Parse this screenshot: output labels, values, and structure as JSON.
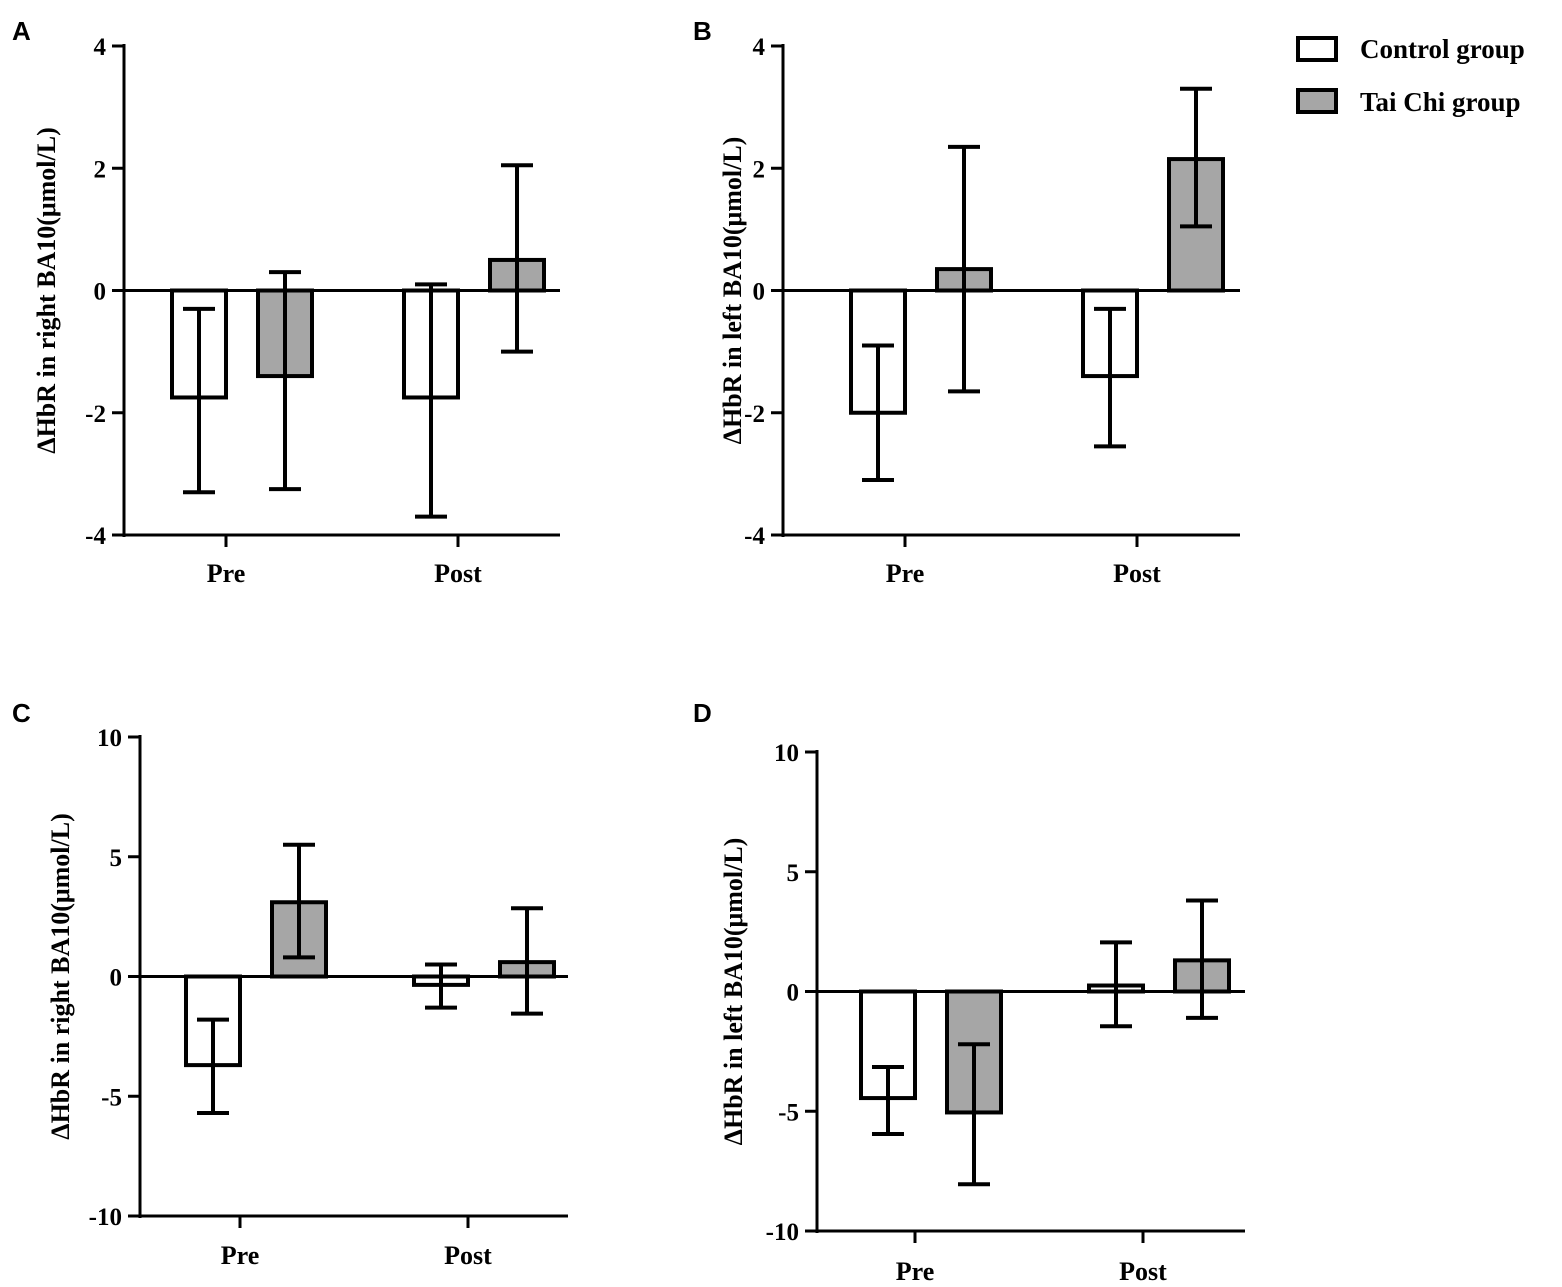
{
  "colors": {
    "control": "#ffffff",
    "taichi": "#a6a6a6",
    "stroke": "#000000"
  },
  "legend": {
    "items": [
      {
        "label": "Control group",
        "color": "#ffffff"
      },
      {
        "label": "Tai Chi group",
        "color": "#a6a6a6"
      }
    ]
  },
  "chart_data": [
    {
      "panel": "A",
      "type": "bar",
      "ylabel": "ΔHbR in right BA10(μmol/L)",
      "ylim": [
        -4,
        4
      ],
      "yticks": [
        4,
        2,
        0,
        -2,
        -4
      ],
      "categories": [
        "Pre",
        "Post"
      ],
      "series": [
        {
          "name": "Control group",
          "values": [
            -1.75,
            -1.75
          ],
          "err_low": [
            -3.3,
            -3.7
          ],
          "err_high": [
            -0.3,
            0.1
          ]
        },
        {
          "name": "Tai Chi group",
          "values": [
            -1.4,
            0.5
          ],
          "err_low": [
            -3.25,
            -1.0
          ],
          "err_high": [
            0.3,
            2.05
          ]
        }
      ]
    },
    {
      "panel": "B",
      "type": "bar",
      "ylabel": "ΔHbR in left BA10(μmol/L)",
      "ylim": [
        -4,
        4
      ],
      "yticks": [
        4,
        2,
        0,
        -2,
        -4
      ],
      "categories": [
        "Pre",
        "Post"
      ],
      "series": [
        {
          "name": "Control group",
          "values": [
            -2.0,
            -1.4
          ],
          "err_low": [
            -3.1,
            -2.55
          ],
          "err_high": [
            -0.9,
            -0.3
          ]
        },
        {
          "name": "Tai Chi group",
          "values": [
            0.35,
            2.15
          ],
          "err_low": [
            -1.65,
            1.05
          ],
          "err_high": [
            2.35,
            3.3
          ]
        }
      ]
    },
    {
      "panel": "C",
      "type": "bar",
      "ylabel": "ΔHbR in right BA10(μmol/L)",
      "ylim": [
        -10,
        10
      ],
      "yticks": [
        10,
        5,
        0,
        -5,
        -10
      ],
      "categories": [
        "Pre",
        "Post"
      ],
      "series": [
        {
          "name": "Control group",
          "values": [
            -3.7,
            -0.35
          ],
          "err_low": [
            -5.7,
            -1.3
          ],
          "err_high": [
            -1.8,
            0.5
          ]
        },
        {
          "name": "Tai Chi group",
          "values": [
            3.1,
            0.6
          ],
          "err_low": [
            0.8,
            -1.55
          ],
          "err_high": [
            5.5,
            2.85
          ]
        }
      ]
    },
    {
      "panel": "D",
      "type": "bar",
      "ylabel": "ΔHbR in left BA10(μmol/L)",
      "ylim": [
        -10,
        10
      ],
      "yticks": [
        10,
        5,
        0,
        -5,
        -10
      ],
      "categories": [
        "Pre",
        "Post"
      ],
      "series": [
        {
          "name": "Control group",
          "values": [
            -4.45,
            0.25
          ],
          "err_low": [
            -5.95,
            -1.45
          ],
          "err_high": [
            -3.15,
            2.05
          ]
        },
        {
          "name": "Tai Chi group",
          "values": [
            -5.05,
            1.3
          ],
          "err_low": [
            -8.05,
            -1.1
          ],
          "err_high": [
            -2.2,
            3.8
          ]
        }
      ]
    }
  ]
}
